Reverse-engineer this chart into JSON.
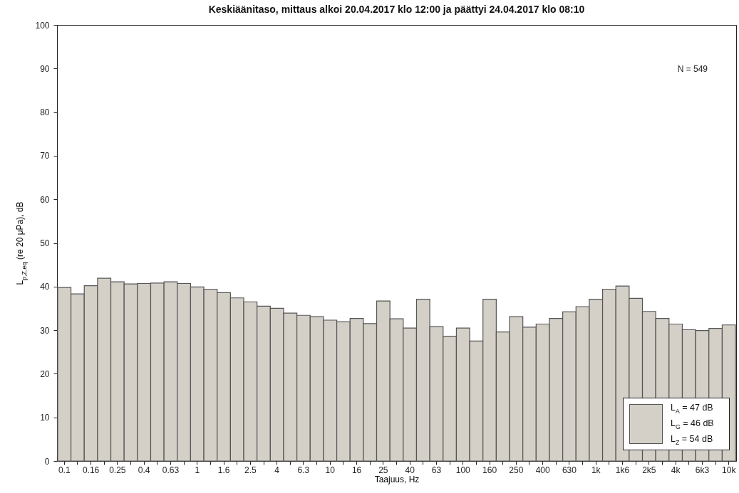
{
  "chart_data": {
    "type": "bar",
    "title": "Keskiäänitaso, mittaus alkoi 20.04.2017 klo 12:00 ja päättyi 24.04.2017 klo 08:10",
    "xlabel": "Taajuus, Hz",
    "ylabel": "L$_{p,Z,eq}$ (re 20  μPa), dB",
    "annotations": [
      "N = 549",
      "L$_{A}$ = 47 dB",
      "L$_{G}$ = 46 dB",
      "L$_{Z}$ = 54 dB"
    ],
    "categories": [
      "0.1",
      null,
      "0.16",
      null,
      "0.25",
      null,
      "0.4",
      null,
      "0.63",
      null,
      "1",
      null,
      "1.6",
      null,
      "2.5",
      null,
      "4",
      null,
      "6.3",
      null,
      "10",
      null,
      "16",
      null,
      "25",
      null,
      "40",
      null,
      "63",
      null,
      "100",
      null,
      "160",
      null,
      "250",
      null,
      "400",
      null,
      "630",
      null,
      "1k",
      null,
      "1k6",
      null,
      "2k5",
      null,
      "4k",
      null,
      "6k3",
      null,
      "10k"
    ],
    "series": [
      {
        "color": "#d4d0c8",
        "values": [
          39.8,
          38.3,
          40.2,
          41.9,
          41.1,
          40.6,
          40.7,
          40.8,
          41.1,
          40.7,
          39.9,
          39.4,
          38.6,
          37.4,
          36.5,
          35.5,
          35.0,
          33.9,
          33.4,
          33.1,
          32.3,
          31.9,
          32.7,
          31.5,
          36.7,
          32.6,
          30.5,
          37.1,
          30.8,
          28.6,
          30.5,
          27.5,
          37.1,
          29.6,
          33.1,
          30.7,
          31.4,
          32.7,
          34.2,
          35.4,
          37.1,
          39.4,
          40.1,
          37.3,
          34.3,
          32.7,
          31.4,
          30.1,
          29.9,
          30.4,
          31.2
        ]
      }
    ],
    "ylim": [
      0,
      100
    ],
    "yticks": [
      0,
      10,
      20,
      30,
      40,
      50,
      60,
      70,
      80,
      90,
      100
    ],
    "grid": false
  }
}
